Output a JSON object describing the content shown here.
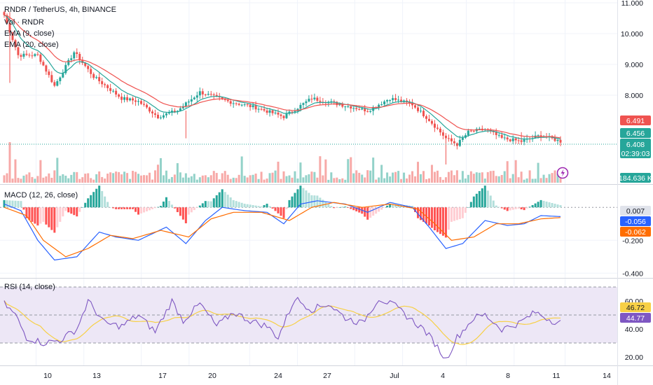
{
  "header": {
    "symbol_title": "RNDR / TetherUS, 4h, BINANCE",
    "legend_vol": "Vol · RNDR",
    "legend_ema9": "EMA (9, close)",
    "legend_ema20": "EMA (20, close)"
  },
  "colors": {
    "up": "#26a69a",
    "down": "#ef5350",
    "vol_up": "#93d2c9",
    "vol_down": "#f7a9a7",
    "ema9": "#26a69a",
    "ema20": "#ef5350",
    "macd_line": "#2962ff",
    "signal_line": "#ff6d00",
    "rsi_line": "#7e57c2",
    "rsi_ma": "#f7d046",
    "rsi_band": "#ede7f6",
    "price_line": "#26a69a"
  },
  "chart_data": [
    {
      "type": "candlestick",
      "name": "price",
      "y_ticks": [
        "11.000",
        "10.000",
        "9.000",
        "8.000"
      ],
      "ylim": [
        5.5,
        11.0
      ],
      "date_ticks": [
        "10",
        "13",
        "17",
        "20",
        "24",
        "27",
        "Jul",
        "4",
        "8",
        "11",
        "14"
      ],
      "anchors": [
        [
          0,
          10.6
        ],
        [
          5,
          9.3
        ],
        [
          12,
          9.3
        ],
        [
          18,
          8.3
        ],
        [
          25,
          9.4
        ],
        [
          32,
          8.6
        ],
        [
          42,
          7.9
        ],
        [
          48,
          7.8
        ],
        [
          55,
          7.3
        ],
        [
          62,
          7.5
        ],
        [
          70,
          8.1
        ],
        [
          80,
          7.8
        ],
        [
          90,
          7.6
        ],
        [
          100,
          7.3
        ],
        [
          110,
          7.9
        ],
        [
          120,
          7.7
        ],
        [
          130,
          7.5
        ],
        [
          138,
          7.9
        ],
        [
          146,
          7.7
        ],
        [
          152,
          7.2
        ],
        [
          158,
          6.6
        ],
        [
          162,
          6.4
        ],
        [
          166,
          6.8
        ],
        [
          172,
          6.9
        ],
        [
          178,
          6.6
        ],
        [
          185,
          6.5
        ],
        [
          192,
          6.7
        ],
        [
          199,
          6.5
        ]
      ],
      "ema9_label": "6.456",
      "ema20_label": "6.491",
      "last_price": "6.408",
      "countdown": "02:39:03"
    },
    {
      "type": "bar",
      "name": "volume",
      "last_volume": "184.636 K"
    },
    {
      "type": "line",
      "name": "macd",
      "legend": "MACD (12, 26, close)",
      "y_ticks": [
        "-0.200",
        "-0.400"
      ],
      "ylim": [
        -0.42,
        0.12
      ],
      "macd_anchors": [
        [
          0,
          0.02
        ],
        [
          6,
          -0.02
        ],
        [
          12,
          -0.2
        ],
        [
          18,
          -0.32
        ],
        [
          26,
          -0.3
        ],
        [
          34,
          -0.15
        ],
        [
          40,
          -0.18
        ],
        [
          48,
          -0.2
        ],
        [
          58,
          -0.12
        ],
        [
          65,
          -0.22
        ],
        [
          72,
          -0.08
        ],
        [
          78,
          0.0
        ],
        [
          86,
          -0.02
        ],
        [
          94,
          -0.03
        ],
        [
          100,
          -0.1
        ],
        [
          106,
          0.02
        ],
        [
          112,
          0.04
        ],
        [
          122,
          0.02
        ],
        [
          130,
          -0.03
        ],
        [
          138,
          0.03
        ],
        [
          146,
          0.0
        ],
        [
          152,
          -0.12
        ],
        [
          158,
          -0.25
        ],
        [
          164,
          -0.22
        ],
        [
          172,
          -0.08
        ],
        [
          180,
          -0.11
        ],
        [
          186,
          -0.1
        ],
        [
          192,
          -0.05
        ],
        [
          199,
          -0.056
        ]
      ],
      "signal_anchors": [
        [
          0,
          0.0
        ],
        [
          8,
          -0.05
        ],
        [
          14,
          -0.2
        ],
        [
          22,
          -0.3
        ],
        [
          30,
          -0.25
        ],
        [
          38,
          -0.17
        ],
        [
          46,
          -0.19
        ],
        [
          56,
          -0.14
        ],
        [
          66,
          -0.18
        ],
        [
          74,
          -0.07
        ],
        [
          82,
          -0.03
        ],
        [
          92,
          -0.03
        ],
        [
          102,
          -0.08
        ],
        [
          110,
          0.0
        ],
        [
          118,
          0.03
        ],
        [
          128,
          0.0
        ],
        [
          138,
          0.02
        ],
        [
          148,
          -0.01
        ],
        [
          154,
          -0.1
        ],
        [
          160,
          -0.2
        ],
        [
          168,
          -0.18
        ],
        [
          176,
          -0.1
        ],
        [
          184,
          -0.1
        ],
        [
          192,
          -0.07
        ],
        [
          199,
          -0.062
        ]
      ],
      "hist_label": "0.007",
      "macd_label": "-0.056",
      "signal_label": "-0.062"
    },
    {
      "type": "line",
      "name": "rsi",
      "legend": "RSI (14, close)",
      "y_ticks": [
        "60.00",
        "40.00",
        "20.00"
      ],
      "ylim": [
        15,
        75
      ],
      "band": [
        30,
        70
      ],
      "mid": 50,
      "rsi_anchors": [
        [
          0,
          58
        ],
        [
          4,
          50
        ],
        [
          8,
          34
        ],
        [
          14,
          30
        ],
        [
          20,
          32
        ],
        [
          26,
          40
        ],
        [
          30,
          60
        ],
        [
          36,
          44
        ],
        [
          42,
          42
        ],
        [
          48,
          50
        ],
        [
          54,
          38
        ],
        [
          60,
          60
        ],
        [
          64,
          46
        ],
        [
          70,
          58
        ],
        [
          76,
          42
        ],
        [
          82,
          52
        ],
        [
          88,
          46
        ],
        [
          94,
          42
        ],
        [
          98,
          34
        ],
        [
          104,
          62
        ],
        [
          110,
          54
        ],
        [
          116,
          58
        ],
        [
          122,
          48
        ],
        [
          128,
          44
        ],
        [
          134,
          62
        ],
        [
          140,
          56
        ],
        [
          146,
          46
        ],
        [
          150,
          40
        ],
        [
          154,
          30
        ],
        [
          158,
          18
        ],
        [
          162,
          34
        ],
        [
          168,
          48
        ],
        [
          172,
          50
        ],
        [
          178,
          40
        ],
        [
          184,
          44
        ],
        [
          190,
          52
        ],
        [
          196,
          46
        ],
        [
          199,
          44.77
        ]
      ],
      "rsi_label": "44.77",
      "rsi_ma_label": "46.72"
    }
  ]
}
